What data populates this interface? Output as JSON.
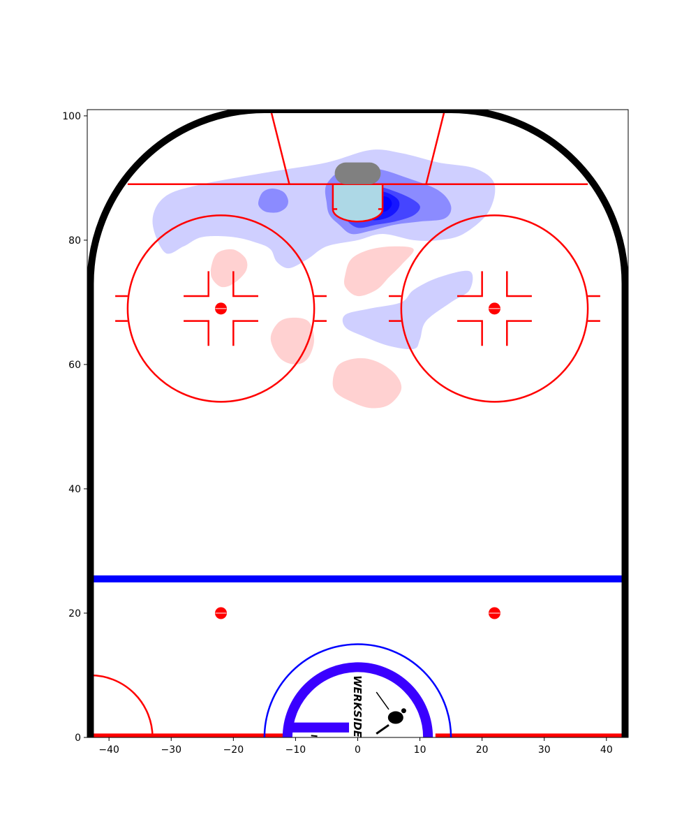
{
  "chart_data": {
    "type": "heatmap",
    "title": "",
    "xlabel": "",
    "ylabel": "",
    "xlim": [
      -43.5,
      43.5
    ],
    "ylim": [
      0,
      101
    ],
    "xticks": [
      -40,
      -30,
      -20,
      -10,
      0,
      10,
      20,
      30,
      40
    ],
    "yticks": [
      0,
      20,
      40,
      60,
      80,
      100
    ],
    "grid": false,
    "legend": "none",
    "colors": {
      "boards": "#000000",
      "lines": "#ff0000",
      "blue_line": "#0000ff",
      "crease": "#add8e6",
      "net": "#808080",
      "center_logo": "#3a00ff",
      "high_excess": "#0000ff",
      "low_excess": "#ff0000"
    },
    "contours": [
      {
        "level": 1,
        "polarity": "high",
        "opacity": 0.19,
        "points": [
          [
            -31,
            78
          ],
          [
            -33,
            83
          ],
          [
            -31,
            87
          ],
          [
            -25,
            89
          ],
          [
            -14,
            91
          ],
          [
            -5,
            92.5
          ],
          [
            2,
            94.5
          ],
          [
            7,
            94
          ],
          [
            13,
            92.5
          ],
          [
            19,
            91.5
          ],
          [
            22,
            89
          ],
          [
            21,
            84.5
          ],
          [
            17,
            81
          ],
          [
            13,
            80
          ],
          [
            9,
            80
          ],
          [
            4,
            81
          ],
          [
            0,
            80
          ],
          [
            -5,
            79
          ],
          [
            -8,
            77
          ],
          [
            -11,
            75.5
          ],
          [
            -13,
            76.5
          ],
          [
            -14,
            78.5
          ],
          [
            -16,
            79.5
          ],
          [
            -20,
            80.5
          ],
          [
            -25,
            80.5
          ],
          [
            -28,
            79
          ]
        ]
      },
      {
        "level": 1,
        "polarity": "high",
        "opacity": 0.19,
        "points": [
          [
            -2,
            66
          ],
          [
            -2,
            68
          ],
          [
            2,
            69
          ],
          [
            7,
            70
          ],
          [
            9,
            72
          ],
          [
            13,
            74
          ],
          [
            18,
            75
          ],
          [
            18,
            72
          ],
          [
            15,
            70
          ],
          [
            11,
            67
          ],
          [
            10,
            64
          ],
          [
            9,
            62.5
          ],
          [
            5,
            63
          ],
          [
            1,
            64.5
          ]
        ]
      },
      {
        "level": 2,
        "polarity": "high",
        "opacity": 0.33,
        "points": [
          [
            -16,
            86
          ],
          [
            -15.5,
            85
          ],
          [
            -14.5,
            84.5
          ],
          [
            -12.8,
            84.5
          ],
          [
            -11.5,
            85.3
          ],
          [
            -11.2,
            86.5
          ],
          [
            -12,
            87.8
          ],
          [
            -13.8,
            88.3
          ],
          [
            -15.3,
            87.7
          ]
        ]
      },
      {
        "level": 2,
        "polarity": "high",
        "opacity": 0.33,
        "points": [
          [
            -5,
            86
          ],
          [
            -5,
            89
          ],
          [
            -2,
            91.5
          ],
          [
            3,
            91.5
          ],
          [
            8,
            90
          ],
          [
            13,
            88
          ],
          [
            15,
            85.5
          ],
          [
            14,
            83.5
          ],
          [
            10,
            83
          ],
          [
            6,
            82.5
          ],
          [
            2,
            81.5
          ],
          [
            -1,
            81
          ],
          [
            -3,
            82.5
          ],
          [
            -4.5,
            84
          ]
        ]
      },
      {
        "level": 3,
        "polarity": "high",
        "opacity": 0.5,
        "points": [
          [
            -3,
            86
          ],
          [
            -2,
            88
          ],
          [
            1,
            89
          ],
          [
            4,
            88.5
          ],
          [
            8,
            87
          ],
          [
            10,
            85.5
          ],
          [
            9,
            84
          ],
          [
            6,
            83
          ],
          [
            3,
            82.5
          ],
          [
            0,
            82
          ],
          [
            -2,
            83.5
          ]
        ]
      },
      {
        "level": 4,
        "polarity": "high",
        "opacity": 0.68,
        "points": [
          [
            0,
            86
          ],
          [
            2,
            87.8
          ],
          [
            4.5,
            87.7
          ],
          [
            6.5,
            86.5
          ],
          [
            6.5,
            85
          ],
          [
            5,
            83.7
          ],
          [
            2.5,
            83.2
          ],
          [
            0.5,
            84
          ]
        ]
      },
      {
        "level": 5,
        "polarity": "high",
        "opacity": 0.85,
        "points": [
          [
            2.5,
            86
          ],
          [
            3.8,
            87
          ],
          [
            5,
            86.8
          ],
          [
            5.5,
            85.8
          ],
          [
            4.8,
            84.8
          ],
          [
            3.5,
            84.5
          ],
          [
            2.6,
            85.1
          ]
        ]
      },
      {
        "level": 1,
        "polarity": "low",
        "opacity": 0.18,
        "points": [
          [
            -23.5,
            76
          ],
          [
            -22.5,
            78
          ],
          [
            -20,
            78.5
          ],
          [
            -18,
            77
          ],
          [
            -18,
            75
          ],
          [
            -20,
            73
          ],
          [
            -22,
            72.5
          ],
          [
            -23.5,
            74
          ]
        ]
      },
      {
        "level": 1,
        "polarity": "low",
        "opacity": 0.18,
        "points": [
          [
            -2,
            74.5
          ],
          [
            -1,
            77
          ],
          [
            2,
            78.5
          ],
          [
            6,
            79
          ],
          [
            9,
            78.5
          ],
          [
            7,
            76
          ],
          [
            5,
            74
          ],
          [
            3,
            72
          ],
          [
            0,
            71
          ],
          [
            -2,
            72.5
          ]
        ]
      },
      {
        "level": 1,
        "polarity": "low",
        "opacity": 0.18,
        "points": [
          [
            -14,
            64
          ],
          [
            -13,
            66.5
          ],
          [
            -11,
            67.5
          ],
          [
            -8,
            67
          ],
          [
            -7,
            64
          ],
          [
            -8,
            61
          ],
          [
            -10,
            60
          ],
          [
            -12.5,
            61
          ]
        ]
      },
      {
        "level": 1,
        "polarity": "low",
        "opacity": 0.18,
        "points": [
          [
            -4,
            57.5
          ],
          [
            -3,
            60
          ],
          [
            0,
            61
          ],
          [
            3,
            60.5
          ],
          [
            6,
            58.5
          ],
          [
            7,
            56
          ],
          [
            5,
            53.5
          ],
          [
            2,
            53
          ],
          [
            -1,
            54
          ],
          [
            -3.5,
            55.5
          ]
        ]
      }
    ]
  },
  "logo": {
    "text": "WERKSIDE"
  }
}
